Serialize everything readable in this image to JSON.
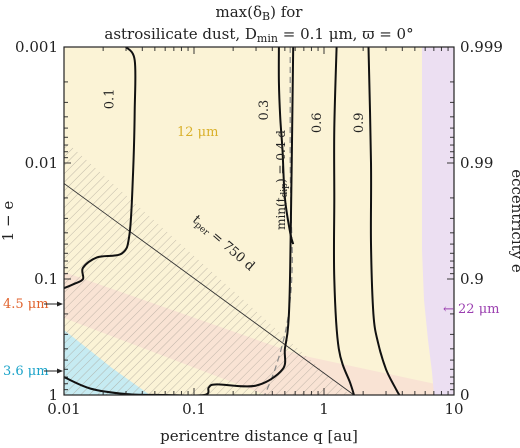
{
  "chart_data": {
    "type": "contour",
    "title_line1": "max(δ",
    "title_line1_sub": "B",
    "title_line1_end": ") for",
    "title_line2": "astrosilicate dust, D",
    "title_line2_sub": "min",
    "title_line2_end": " = 0.1 μm, ϖ = 0°",
    "xlabel": "pericentre distance q [au]",
    "ylabel_left": "1 − e",
    "ylabel_right": "eccentricity e",
    "x_scale": "log",
    "y_scale": "log",
    "xlim": [
      0.01,
      10
    ],
    "ylim_one_minus_e": [
      0.001,
      1
    ],
    "x_ticks": [
      "0.01",
      "0.1",
      "1",
      "10"
    ],
    "y_ticks_left": [
      "0.001",
      "0.01",
      "0.1",
      "1"
    ],
    "y_ticks_right": [
      "0.999",
      "0.99",
      "0.9",
      "0"
    ],
    "region_labels": [
      {
        "text": "12 μm",
        "color": "#d9b02a",
        "q": 0.28,
        "one_minus_e": 0.005
      },
      {
        "text": "4.5 μm",
        "color": "#e0622c",
        "q": 0.0035,
        "one_minus_e": 0.2
      },
      {
        "text": "3.6 μm",
        "color": "#1aa3c9",
        "q": 0.0035,
        "one_minus_e": 0.6
      },
      {
        "text": "← 22 μm",
        "color": "#9b3fb0",
        "q": 7.2,
        "one_minus_e": 0.2
      }
    ],
    "region_colors": {
      "band_12um": "#fbf3d6",
      "band_4_5um": "#f8dfd4",
      "band_3_6um": "#c6ebf2",
      "band_22um": "#ecdff2"
    },
    "contours": [
      {
        "level": "0.1",
        "label": "0.1",
        "q": [
          0.03,
          0.035,
          0.035,
          0.034,
          0.032,
          0.028,
          0.018,
          0.014,
          0.014,
          0.012,
          0.01
        ],
        "one_minus_e": [
          0.001,
          0.0013,
          0.0035,
          0.012,
          0.04,
          0.06,
          0.065,
          0.08,
          0.1,
          0.11,
          0.12
        ]
      },
      {
        "level": "0.1",
        "label": "",
        "q": [
          0.01,
          0.016,
          0.03,
          0.06,
          0.12,
          0.13,
          0.15,
          0.3,
          0.48,
          0.5,
          0.53,
          0.55,
          0.58
        ],
        "one_minus_e": [
          0.7,
          0.88,
          0.98,
          1.0,
          1.0,
          0.86,
          0.81,
          0.83,
          0.6,
          0.4,
          0.25,
          0.08,
          0.001
        ]
      },
      {
        "level": "0.3",
        "label": "0.3",
        "q": [
          0.45,
          0.45,
          0.46,
          0.48,
          0.5,
          0.55,
          0.58
        ],
        "one_minus_e": [
          0.001,
          0.002,
          0.004,
          0.008,
          0.02,
          0.04,
          0.05
        ]
      },
      {
        "level": "0.6",
        "label": "0.6",
        "q": [
          1.25,
          1.2,
          1.2,
          1.2,
          1.3,
          1.6,
          1.7
        ],
        "one_minus_e": [
          0.001,
          0.005,
          0.02,
          0.1,
          0.4,
          0.8,
          1.0
        ]
      },
      {
        "level": "0.9",
        "label": "0.9",
        "q": [
          2.2,
          2.3,
          2.3,
          2.4,
          2.6,
          3.0,
          3.6,
          3.8
        ],
        "one_minus_e": [
          0.001,
          0.01,
          0.05,
          0.2,
          0.35,
          0.6,
          0.9,
          1.0
        ]
      }
    ],
    "dashed_curve": {
      "label": "min(t",
      "label_sub": "dip",
      "label_end": ") = 0.4 d",
      "q": [
        0.55,
        0.55,
        0.55,
        0.56,
        0.57,
        0.55,
        0.5,
        0.42,
        0.35
      ],
      "one_minus_e": [
        0.001,
        0.003,
        0.01,
        0.03,
        0.07,
        0.15,
        0.3,
        0.6,
        1.0
      ]
    },
    "period_line": {
      "label": "t",
      "label_sub": "per",
      "label_end": " = 750 d",
      "q": [
        0.01,
        1.7
      ],
      "one_minus_e": [
        0.015,
        1.0
      ]
    }
  }
}
